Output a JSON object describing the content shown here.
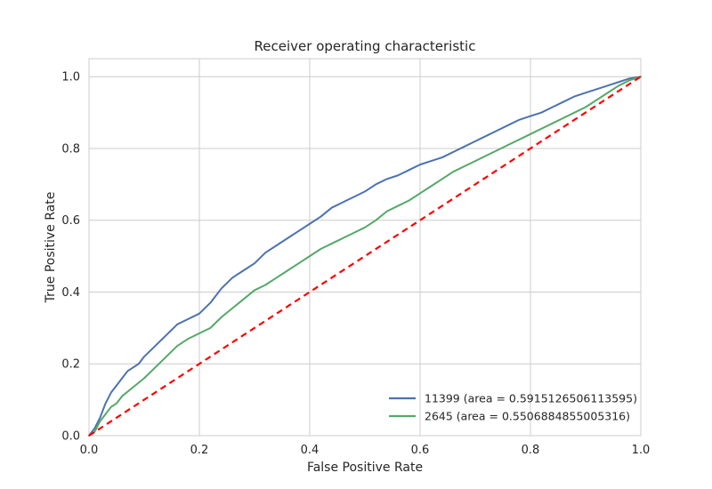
{
  "chart_data": {
    "type": "line",
    "title": "Receiver operating characteristic",
    "xlabel": "False Positive Rate",
    "ylabel": "True Positive Rate",
    "xlim": [
      0.0,
      1.0
    ],
    "ylim": [
      0.0,
      1.05
    ],
    "xticks": [
      "0.0",
      "0.2",
      "0.4",
      "0.6",
      "0.8",
      "1.0"
    ],
    "yticks": [
      "0.0",
      "0.2",
      "0.4",
      "0.6",
      "0.8",
      "1.0"
    ],
    "grid": true,
    "legend_position": "lower-right",
    "series": [
      {
        "name": "11399 (area = 0.5915126506113595)",
        "color": "#4c72b0",
        "points": [
          [
            0.0,
            0.0
          ],
          [
            0.01,
            0.02
          ],
          [
            0.02,
            0.05
          ],
          [
            0.03,
            0.09
          ],
          [
            0.04,
            0.12
          ],
          [
            0.05,
            0.14
          ],
          [
            0.06,
            0.16
          ],
          [
            0.07,
            0.18
          ],
          [
            0.08,
            0.19
          ],
          [
            0.09,
            0.2
          ],
          [
            0.1,
            0.22
          ],
          [
            0.12,
            0.25
          ],
          [
            0.14,
            0.28
          ],
          [
            0.16,
            0.31
          ],
          [
            0.18,
            0.325
          ],
          [
            0.2,
            0.34
          ],
          [
            0.22,
            0.37
          ],
          [
            0.24,
            0.41
          ],
          [
            0.26,
            0.44
          ],
          [
            0.28,
            0.46
          ],
          [
            0.3,
            0.48
          ],
          [
            0.32,
            0.51
          ],
          [
            0.34,
            0.53
          ],
          [
            0.36,
            0.55
          ],
          [
            0.38,
            0.57
          ],
          [
            0.4,
            0.59
          ],
          [
            0.42,
            0.61
          ],
          [
            0.44,
            0.635
          ],
          [
            0.46,
            0.65
          ],
          [
            0.48,
            0.665
          ],
          [
            0.5,
            0.68
          ],
          [
            0.52,
            0.7
          ],
          [
            0.54,
            0.715
          ],
          [
            0.56,
            0.725
          ],
          [
            0.58,
            0.74
          ],
          [
            0.6,
            0.755
          ],
          [
            0.62,
            0.765
          ],
          [
            0.64,
            0.775
          ],
          [
            0.66,
            0.79
          ],
          [
            0.68,
            0.805
          ],
          [
            0.7,
            0.82
          ],
          [
            0.72,
            0.835
          ],
          [
            0.74,
            0.85
          ],
          [
            0.76,
            0.865
          ],
          [
            0.78,
            0.88
          ],
          [
            0.8,
            0.89
          ],
          [
            0.82,
            0.9
          ],
          [
            0.84,
            0.915
          ],
          [
            0.86,
            0.93
          ],
          [
            0.88,
            0.945
          ],
          [
            0.9,
            0.955
          ],
          [
            0.92,
            0.965
          ],
          [
            0.94,
            0.975
          ],
          [
            0.96,
            0.985
          ],
          [
            0.98,
            0.995
          ],
          [
            1.0,
            1.0
          ]
        ]
      },
      {
        "name": "2645 (area = 0.5506884855005316)",
        "color": "#55a868",
        "points": [
          [
            0.0,
            0.0
          ],
          [
            0.01,
            0.01
          ],
          [
            0.02,
            0.04
          ],
          [
            0.03,
            0.06
          ],
          [
            0.04,
            0.08
          ],
          [
            0.05,
            0.09
          ],
          [
            0.06,
            0.11
          ],
          [
            0.08,
            0.135
          ],
          [
            0.1,
            0.16
          ],
          [
            0.12,
            0.19
          ],
          [
            0.14,
            0.22
          ],
          [
            0.16,
            0.25
          ],
          [
            0.18,
            0.27
          ],
          [
            0.2,
            0.285
          ],
          [
            0.22,
            0.3
          ],
          [
            0.24,
            0.33
          ],
          [
            0.26,
            0.355
          ],
          [
            0.28,
            0.38
          ],
          [
            0.3,
            0.405
          ],
          [
            0.32,
            0.42
          ],
          [
            0.34,
            0.44
          ],
          [
            0.36,
            0.46
          ],
          [
            0.38,
            0.48
          ],
          [
            0.4,
            0.5
          ],
          [
            0.42,
            0.52
          ],
          [
            0.44,
            0.535
          ],
          [
            0.46,
            0.55
          ],
          [
            0.48,
            0.565
          ],
          [
            0.5,
            0.58
          ],
          [
            0.52,
            0.6
          ],
          [
            0.54,
            0.625
          ],
          [
            0.56,
            0.64
          ],
          [
            0.58,
            0.655
          ],
          [
            0.6,
            0.675
          ],
          [
            0.62,
            0.695
          ],
          [
            0.64,
            0.715
          ],
          [
            0.66,
            0.735
          ],
          [
            0.68,
            0.75
          ],
          [
            0.7,
            0.765
          ],
          [
            0.72,
            0.78
          ],
          [
            0.74,
            0.795
          ],
          [
            0.76,
            0.81
          ],
          [
            0.78,
            0.825
          ],
          [
            0.8,
            0.84
          ],
          [
            0.82,
            0.855
          ],
          [
            0.84,
            0.87
          ],
          [
            0.86,
            0.885
          ],
          [
            0.88,
            0.9
          ],
          [
            0.9,
            0.915
          ],
          [
            0.92,
            0.935
          ],
          [
            0.94,
            0.955
          ],
          [
            0.96,
            0.975
          ],
          [
            0.98,
            0.99
          ],
          [
            1.0,
            1.0
          ]
        ]
      }
    ],
    "reference_line": {
      "points": [
        [
          0.0,
          0.0
        ],
        [
          1.0,
          1.0
        ]
      ],
      "color": "#ff0000",
      "style": "dashed"
    }
  }
}
